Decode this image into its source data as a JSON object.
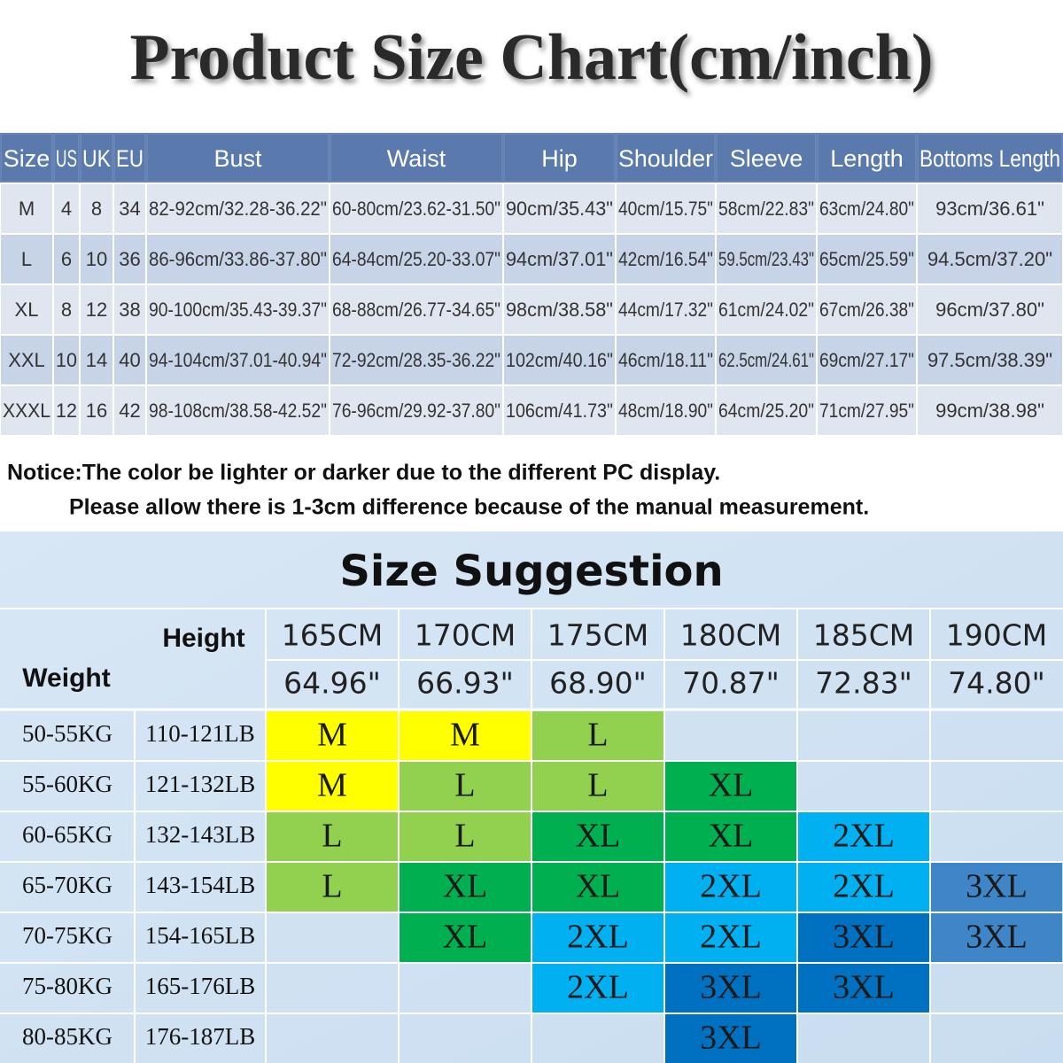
{
  "title": "Product Size Chart(cm/inch)",
  "size_table": {
    "header": [
      "Size",
      "US",
      "UK",
      "EU",
      "Bust",
      "Waist",
      "Hip",
      "Shoulder",
      "Sleeve",
      "Length",
      "Bottoms Length"
    ],
    "rows": [
      [
        "M",
        4,
        8,
        34,
        "82-92cm/32.28-36.22\"",
        "60-80cm/23.62-31.50\"",
        "90cm/35.43\"",
        "40cm/15.75\"",
        "58cm/22.83\"",
        "63cm/24.80\"",
        "93cm/36.61\""
      ],
      [
        "L",
        6,
        10,
        36,
        "86-96cm/33.86-37.80\"",
        "64-84cm/25.20-33.07\"",
        "94cm/37.01\"",
        "42cm/16.54\"",
        "59.5cm/23.43\"",
        "65cm/25.59\"",
        "94.5cm/37.20\""
      ],
      [
        "XL",
        8,
        12,
        38,
        "90-100cm/35.43-39.37\"",
        "68-88cm/26.77-34.65\"",
        "98cm/38.58\"",
        "44cm/17.32\"",
        "61cm/24.02\"",
        "67cm/26.38\"",
        "96cm/37.80\""
      ],
      [
        "XXL",
        10,
        14,
        40,
        "94-104cm/37.01-40.94\"",
        "72-92cm/28.35-36.22\"",
        "102cm/40.16\"",
        "46cm/18.11\"",
        "62.5cm/24.61\"",
        "69cm/27.17\"",
        "97.5cm/38.39\""
      ],
      [
        "XXXL",
        12,
        16,
        42,
        "98-108cm/38.58-42.52\"",
        "76-96cm/29.92-37.80\"",
        "106cm/41.73\"",
        "48cm/18.90\"",
        "64cm/25.20\"",
        "71cm/27.95\"",
        "99cm/38.98\""
      ]
    ]
  },
  "notices": [
    "Notice:The color be lighter or darker due to the different PC display.",
    "Please allow there is 1-3cm difference because of the manual measurement."
  ],
  "suggestion": {
    "title": "Size Suggestion",
    "height_label": "Height",
    "weight_label": "Weight",
    "heights_cm": [
      "165CM",
      "170CM",
      "175CM",
      "180CM",
      "185CM",
      "190CM"
    ],
    "heights_in": [
      "64.96\"",
      "66.93\"",
      "68.90\"",
      "70.87\"",
      "72.83\"",
      "74.80\""
    ],
    "rows": [
      {
        "kg": "50-55KG",
        "lb": "110-121LB",
        "cells": [
          {
            "label": "M",
            "color": "#ffff00"
          },
          {
            "label": "M",
            "color": "#ffff00"
          },
          {
            "label": "L",
            "color": "#92d050"
          },
          null,
          null,
          null
        ]
      },
      {
        "kg": "55-60KG",
        "lb": "121-132LB",
        "cells": [
          {
            "label": "M",
            "color": "#ffff00"
          },
          {
            "label": "L",
            "color": "#92d050"
          },
          {
            "label": "L",
            "color": "#92d050"
          },
          {
            "label": "XL",
            "color": "#00b050"
          },
          null,
          null
        ]
      },
      {
        "kg": "60-65KG",
        "lb": "132-143LB",
        "cells": [
          {
            "label": "L",
            "color": "#92d050"
          },
          {
            "label": "L",
            "color": "#92d050"
          },
          {
            "label": "XL",
            "color": "#00b050"
          },
          {
            "label": "XL",
            "color": "#00b050"
          },
          {
            "label": "2XL",
            "color": "#00b0f0"
          },
          null
        ]
      },
      {
        "kg": "65-70KG",
        "lb": "143-154LB",
        "cells": [
          {
            "label": "L",
            "color": "#92d050"
          },
          {
            "label": "XL",
            "color": "#00b050"
          },
          {
            "label": "XL",
            "color": "#00b050"
          },
          {
            "label": "2XL",
            "color": "#00b0f0"
          },
          {
            "label": "2XL",
            "color": "#00b0f0"
          },
          {
            "label": "3XL",
            "color": "#3f86c9"
          }
        ]
      },
      {
        "kg": "70-75KG",
        "lb": "154-165LB",
        "cells": [
          null,
          {
            "label": "XL",
            "color": "#00b050"
          },
          {
            "label": "2XL",
            "color": "#00b0f0"
          },
          {
            "label": "2XL",
            "color": "#00b0f0"
          },
          {
            "label": "3XL",
            "color": "#0070c0"
          },
          {
            "label": "3XL",
            "color": "#3f86c9"
          }
        ]
      },
      {
        "kg": "75-80KG",
        "lb": "165-176LB",
        "cells": [
          null,
          null,
          {
            "label": "2XL",
            "color": "#00b0f0"
          },
          {
            "label": "3XL",
            "color": "#0070c0"
          },
          {
            "label": "3XL",
            "color": "#0070c0"
          },
          null
        ]
      },
      {
        "kg": "80-85KG",
        "lb": "176-187LB",
        "cells": [
          null,
          null,
          null,
          {
            "label": "3XL",
            "color": "#0070c0"
          },
          null,
          null
        ]
      }
    ]
  }
}
